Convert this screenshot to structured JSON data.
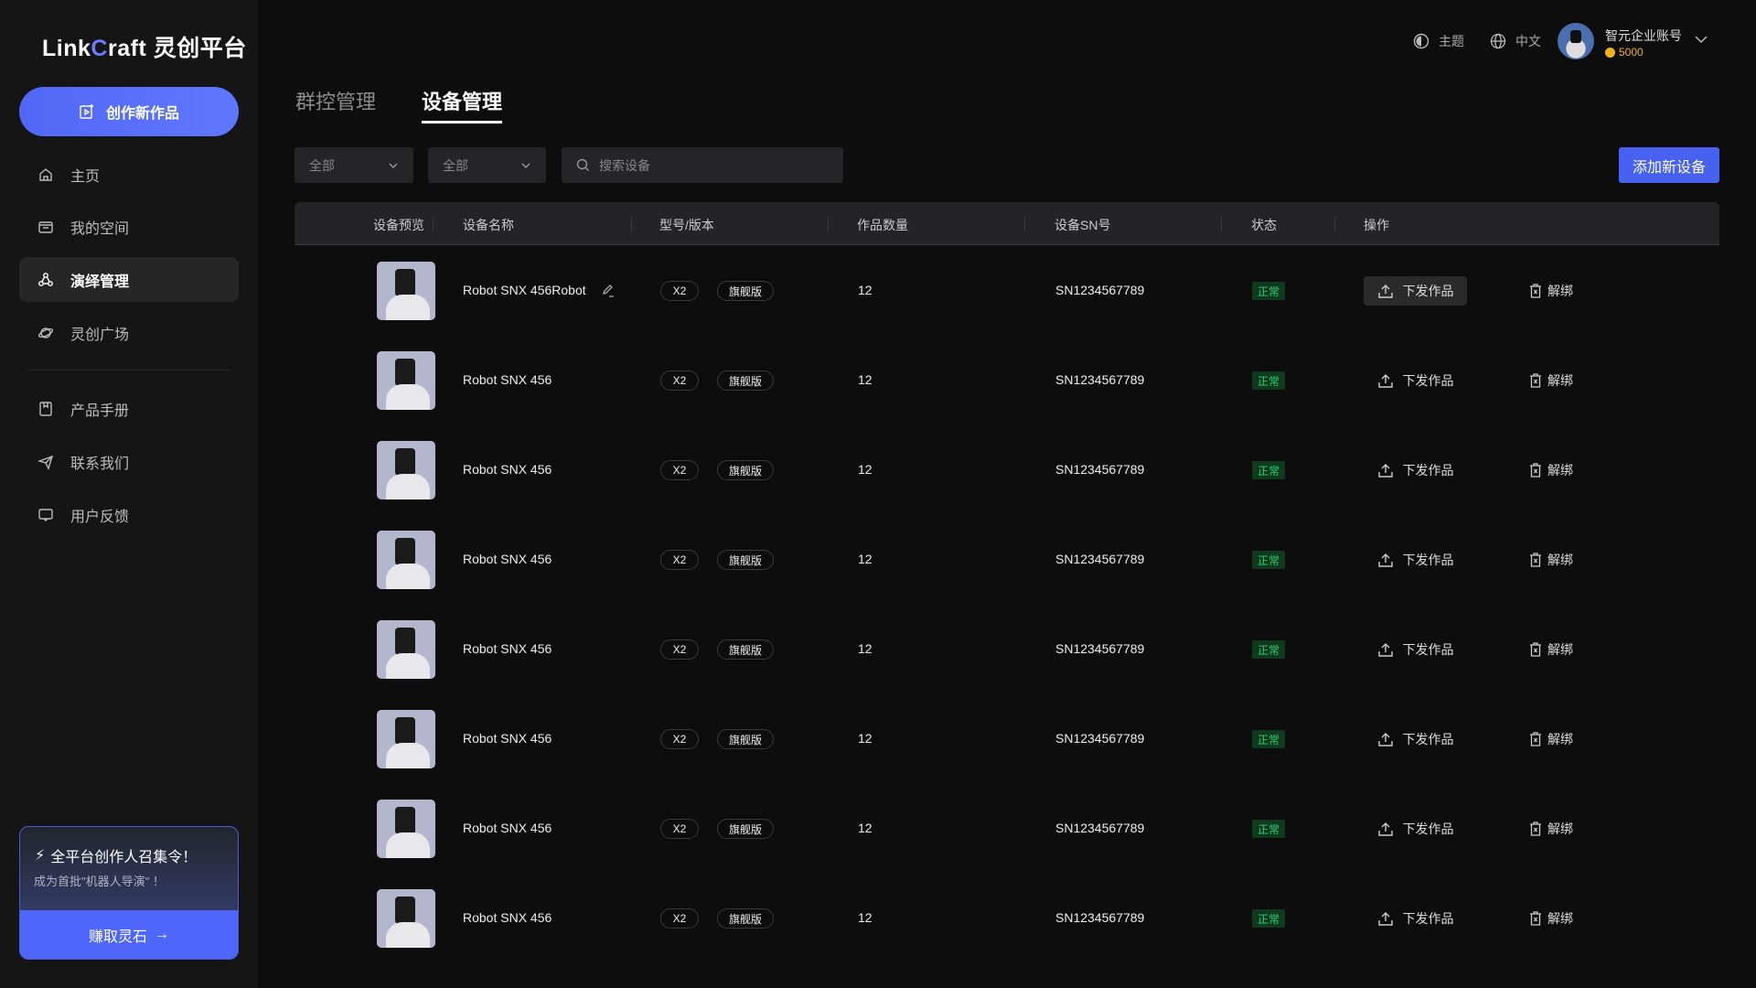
{
  "sidebar": {
    "logo": {
      "text_a": "Link",
      "text_c": "C",
      "text_b": "raft",
      "text_cn": "灵创平台"
    },
    "create_label": "创作新作品",
    "nav": [
      {
        "label": "主页",
        "icon": "home-icon"
      },
      {
        "label": "我的空间",
        "icon": "folder-icon"
      },
      {
        "label": "演绎管理",
        "icon": "nodes-icon",
        "active": true
      },
      {
        "label": "灵创广场",
        "icon": "planet-icon"
      },
      {
        "label": "产品手册",
        "icon": "book-icon"
      },
      {
        "label": "联系我们",
        "icon": "send-icon"
      },
      {
        "label": "用户反馈",
        "icon": "feedback-icon"
      }
    ],
    "promo": {
      "title": "全平台创作人召集令！",
      "subtitle": "成为首批\"机器人导演\" ！",
      "button": "赚取灵石"
    }
  },
  "header": {
    "theme_label": "主题",
    "lang_label": "中文",
    "account_name": "智元企业账号",
    "coins": "5000"
  },
  "tabs": [
    {
      "label": "群控管理"
    },
    {
      "label": "设备管理",
      "active": true
    }
  ],
  "filters": {
    "select1": "全部",
    "select2": "全部",
    "search_placeholder": "搜索设备",
    "add_button": "添加新设备"
  },
  "table": {
    "columns": [
      "设备预览",
      "设备名称",
      "型号/版本",
      "作品数量",
      "设备SN号",
      "状态",
      "操作"
    ],
    "rows": [
      {
        "name": "Robot SNX 456Robot",
        "model": "X2",
        "edition": "旗舰版",
        "count": "12",
        "sn": "SN1234567789",
        "status": "正常",
        "deploy": "下发作品",
        "unbind": "解绑"
      },
      {
        "name": "Robot SNX 456",
        "model": "X2",
        "edition": "旗舰版",
        "count": "12",
        "sn": "SN1234567789",
        "status": "正常",
        "deploy": "下发作品",
        "unbind": "解绑"
      },
      {
        "name": "Robot SNX 456",
        "model": "X2",
        "edition": "旗舰版",
        "count": "12",
        "sn": "SN1234567789",
        "status": "正常",
        "deploy": "下发作品",
        "unbind": "解绑"
      },
      {
        "name": "Robot SNX 456",
        "model": "X2",
        "edition": "旗舰版",
        "count": "12",
        "sn": "SN1234567789",
        "status": "正常",
        "deploy": "下发作品",
        "unbind": "解绑"
      },
      {
        "name": "Robot SNX 456",
        "model": "X2",
        "edition": "旗舰版",
        "count": "12",
        "sn": "SN1234567789",
        "status": "正常",
        "deploy": "下发作品",
        "unbind": "解绑"
      },
      {
        "name": "Robot SNX 456",
        "model": "X2",
        "edition": "旗舰版",
        "count": "12",
        "sn": "SN1234567789",
        "status": "正常",
        "deploy": "下发作品",
        "unbind": "解绑"
      },
      {
        "name": "Robot SNX 456",
        "model": "X2",
        "edition": "旗舰版",
        "count": "12",
        "sn": "SN1234567789",
        "status": "正常",
        "deploy": "下发作品",
        "unbind": "解绑"
      },
      {
        "name": "Robot SNX 456",
        "model": "X2",
        "edition": "旗舰版",
        "count": "12",
        "sn": "SN1234567789",
        "status": "正常",
        "deploy": "下发作品",
        "unbind": "解绑"
      }
    ]
  },
  "colors": {
    "accent": "#4f66fb",
    "status_ok": "#2ecc71",
    "coin": "#f5b31a"
  }
}
